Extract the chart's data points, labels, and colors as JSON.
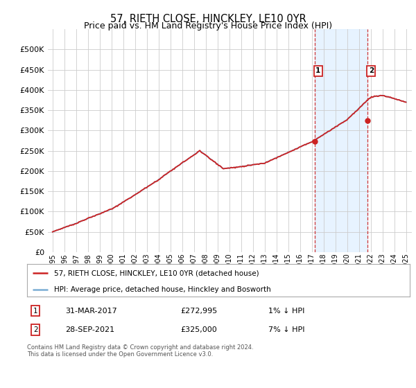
{
  "title": "57, RIETH CLOSE, HINCKLEY, LE10 0YR",
  "subtitle": "Price paid vs. HM Land Registry's House Price Index (HPI)",
  "legend_line1": "57, RIETH CLOSE, HINCKLEY, LE10 0YR (detached house)",
  "legend_line2": "HPI: Average price, detached house, Hinckley and Bosworth",
  "annotation1_label": "1",
  "annotation1_date": "31-MAR-2017",
  "annotation1_price": "£272,995",
  "annotation1_hpi": "1% ↓ HPI",
  "annotation2_label": "2",
  "annotation2_date": "28-SEP-2021",
  "annotation2_price": "£325,000",
  "annotation2_hpi": "7% ↓ HPI",
  "footnote": "Contains HM Land Registry data © Crown copyright and database right 2024.\nThis data is licensed under the Open Government Licence v3.0.",
  "hpi_color": "#7aadd4",
  "price_color": "#cc2222",
  "annotation_box_color": "#cc2222",
  "vline_color": "#cc2222",
  "shaded_region_color": "#ddeeff",
  "ylim": [
    0,
    550000
  ],
  "yticks": [
    0,
    50000,
    100000,
    150000,
    200000,
    250000,
    300000,
    350000,
    400000,
    450000,
    500000
  ],
  "t1": 2017.25,
  "t2": 2021.75,
  "p1": 272995,
  "p2": 325000,
  "xmin": 1995,
  "xmax": 2025
}
